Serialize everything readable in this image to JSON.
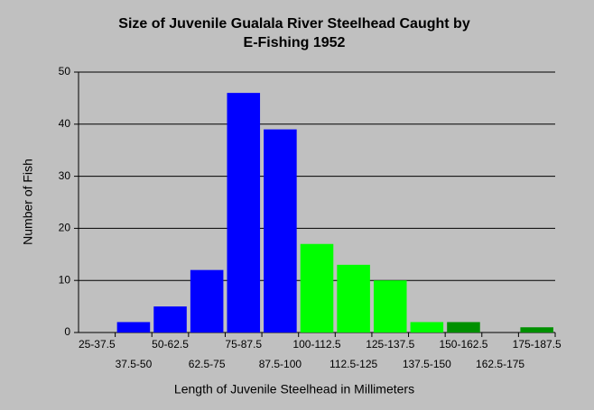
{
  "chart_data": {
    "type": "bar",
    "title": [
      "Size of Juvenile Gualala River Steelhead Caught by",
      "E-Fishing 1952"
    ],
    "x_label": "Length of Juvenile Steelhead in Millimeters",
    "y_label": "Number of Fish",
    "categories": [
      "25-37.5",
      "37.5-50",
      "50-62.5",
      "62.5-75",
      "75-87.5",
      "87.5-100",
      "100-112.5",
      "112.5-125",
      "125-137.5",
      "137.5-150",
      "150-162.5",
      "162.5-175",
      "175-187.5"
    ],
    "values": [
      0,
      2,
      5,
      12,
      46,
      39,
      17,
      13,
      10,
      2,
      2,
      0,
      1
    ],
    "colors": [
      "#0000ff",
      "#0000ff",
      "#0000ff",
      "#0000ff",
      "#0000ff",
      "#0000ff",
      "#00ff00",
      "#00ff00",
      "#00ff00",
      "#00ff00",
      "#009000",
      "#009000",
      "#009000"
    ],
    "ylim": [
      0,
      50
    ],
    "yticks": [
      0,
      10,
      20,
      30,
      40,
      50
    ],
    "grid": true
  }
}
